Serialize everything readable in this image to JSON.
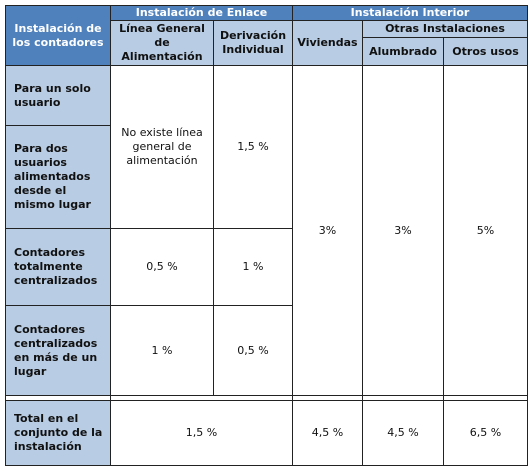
{
  "table": {
    "corner": "Instalación de los contadores",
    "group_headers": [
      "Instalación de Enlace",
      "Instalación Interior"
    ],
    "subgroup_header": "Otras Instalaciones",
    "column_headers": [
      "Línea General de Alimentación",
      "Derivación Individual",
      "Viviendas",
      "Alumbrado",
      "Otros usos"
    ],
    "row_headers": [
      "Para un solo usuario",
      "Para dos usuarios alimentados desde el mismo lugar",
      "Contadores totalmente centralizados",
      "Contadores centralizados en más de un lugar",
      "Total en el conjunto de la instalación"
    ],
    "cells": {
      "individual_linea": "No existe línea general de alimentación",
      "individual_derivacion": "1,5 %",
      "viviendas": "3%",
      "alumbrado": "3%",
      "otros_usos": "5%",
      "total_cent_linea": "0,5 %",
      "total_cent_derivacion": "1 %",
      "varios_linea": "1 %",
      "varios_derivacion": "0,5 %",
      "total_enlace": "1,5 %",
      "total_viviendas": "4,5 %",
      "total_alumbrado": "4,5 %",
      "total_otros": "6,5 %"
    }
  }
}
